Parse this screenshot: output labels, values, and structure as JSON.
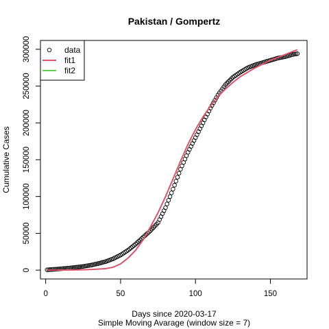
{
  "chart_data": {
    "type": "scatter",
    "title": "Pakistan / Gompertz",
    "xlabel": "Days since 2020-03-17",
    "xlabel2": "Simple Moving Avarage (window size = 7)",
    "ylabel": "Cumulative Cases",
    "xlim": [
      -3.5,
      174.5
    ],
    "ylim": [
      -12000,
      312000
    ],
    "xticks": [
      0,
      50,
      100,
      150
    ],
    "yticks": [
      0,
      50000,
      100000,
      150000,
      200000,
      250000,
      300000
    ],
    "grid": false,
    "legend_position": "top-left",
    "legend": [
      {
        "label": "data",
        "symbol": "circle",
        "color": "#000000"
      },
      {
        "label": "fit1",
        "symbol": "line",
        "color": "#DF536B"
      },
      {
        "label": "fit2",
        "symbol": "line",
        "color": "#61D04F"
      }
    ],
    "series": [
      {
        "name": "data",
        "kind": "points",
        "color": "#000000",
        "x": [
          1,
          5,
          10,
          15,
          20,
          25,
          30,
          35,
          40,
          45,
          50,
          55,
          60,
          65,
          70,
          75,
          80,
          85,
          90,
          95,
          100,
          105,
          110,
          115,
          120,
          125,
          130,
          135,
          140,
          145,
          150,
          155,
          160,
          165,
          168
        ],
        "y": [
          500,
          1000,
          1800,
          2700,
          3800,
          5000,
          6700,
          8900,
          11600,
          15400,
          20500,
          27100,
          35300,
          44600,
          53700,
          64500,
          84800,
          110000,
          137000,
          160000,
          180000,
          200000,
          220000,
          238000,
          252000,
          262000,
          269000,
          275000,
          279000,
          282000,
          285000,
          288000,
          290000,
          293000,
          294000
        ]
      },
      {
        "name": "fit1",
        "kind": "line",
        "color": "#DF536B",
        "x": [
          1,
          10,
          20,
          30,
          40,
          45,
          50,
          55,
          60,
          65,
          70,
          75,
          80,
          85,
          90,
          95,
          100,
          105,
          110,
          115,
          120,
          125,
          130,
          135,
          140,
          145,
          150,
          155,
          160,
          165,
          168
        ],
        "y": [
          0,
          50,
          300,
          800,
          2000,
          4000,
          8500,
          16500,
          27000,
          41000,
          59000,
          78000,
          100000,
          124000,
          148000,
          171000,
          191000,
          208000,
          223000,
          236000,
          246000,
          255000,
          263000,
          269000,
          275000,
          280000,
          285000,
          289000,
          293000,
          297000,
          299500
        ]
      },
      {
        "name": "fit2",
        "kind": "line",
        "color": "#61D04F",
        "x": [],
        "y": []
      }
    ]
  }
}
